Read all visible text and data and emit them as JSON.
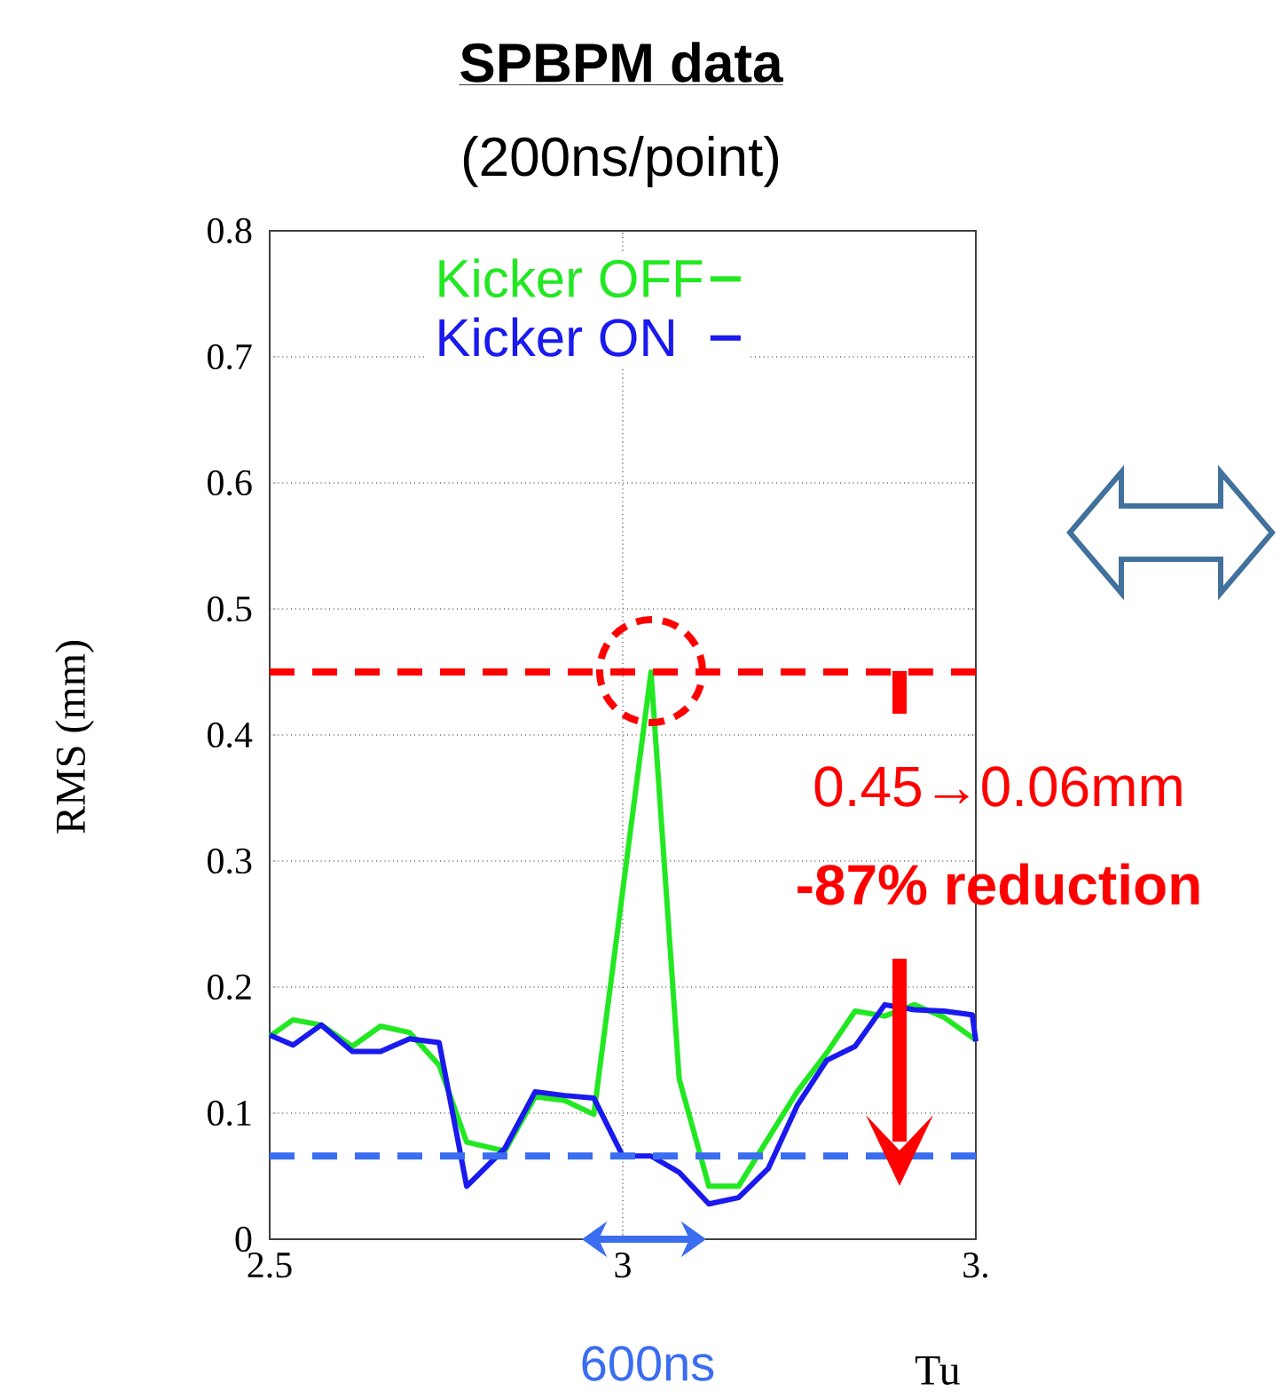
{
  "chart_data": {
    "type": "line",
    "title": "SPBPM data",
    "subtitle": "(200ns/point)",
    "xlabel": "Tu",
    "ylabel": "RMS (mm)",
    "xlim": [
      2.5,
      3.5
    ],
    "ylim": [
      0,
      0.8
    ],
    "xticks": [
      2.5,
      3,
      {
        "value": 3.5,
        "label": "3."
      }
    ],
    "yticks": [
      0,
      0.1,
      0.2,
      0.3,
      0.4,
      0.5,
      0.6,
      0.7,
      0.8
    ],
    "grid": true,
    "legend": "top",
    "marker": "none",
    "line_style": "solid",
    "series": [
      {
        "name": "Kicker OFF",
        "color": "#22e822",
        "x": [
          2.5,
          2.533,
          2.573,
          2.617,
          2.657,
          2.698,
          2.74,
          2.779,
          2.833,
          2.876,
          2.918,
          2.959,
          3.04,
          3.08,
          3.122,
          3.164,
          3.206,
          3.247,
          3.289,
          3.329,
          3.371,
          3.413,
          3.455,
          3.5
        ],
        "values": [
          0.161,
          0.174,
          0.17,
          0.153,
          0.169,
          0.164,
          0.138,
          0.077,
          0.07,
          0.113,
          0.11,
          0.099,
          0.45,
          0.127,
          0.042,
          0.042,
          0.08,
          0.117,
          0.148,
          0.181,
          0.177,
          0.186,
          0.176,
          0.158
        ]
      },
      {
        "name": "Kicker ON",
        "color": "#1a1aee",
        "x": [
          2.5,
          2.533,
          2.573,
          2.617,
          2.657,
          2.698,
          2.74,
          2.779,
          2.833,
          2.876,
          2.918,
          2.959,
          3.0,
          3.04,
          3.08,
          3.122,
          3.164,
          3.206,
          3.247,
          3.289,
          3.329,
          3.371,
          3.413,
          3.455,
          3.495,
          3.5
        ],
        "values": [
          0.162,
          0.154,
          0.17,
          0.149,
          0.149,
          0.159,
          0.156,
          0.042,
          0.072,
          0.117,
          0.114,
          0.112,
          0.066,
          0.066,
          0.053,
          0.028,
          0.033,
          0.056,
          0.106,
          0.142,
          0.153,
          0.186,
          0.182,
          0.181,
          0.178,
          0.157
        ]
      }
    ],
    "ref_lines": [
      {
        "axis": "y",
        "value": 0.45,
        "color": "#ff0000",
        "line_style": "dashed"
      },
      {
        "axis": "y",
        "value": 0.066,
        "color": "#3a6df0",
        "line_style": "dashed"
      }
    ],
    "annotations": [
      "0.45→0.06mm",
      "-87% reduction",
      "600ns"
    ]
  }
}
